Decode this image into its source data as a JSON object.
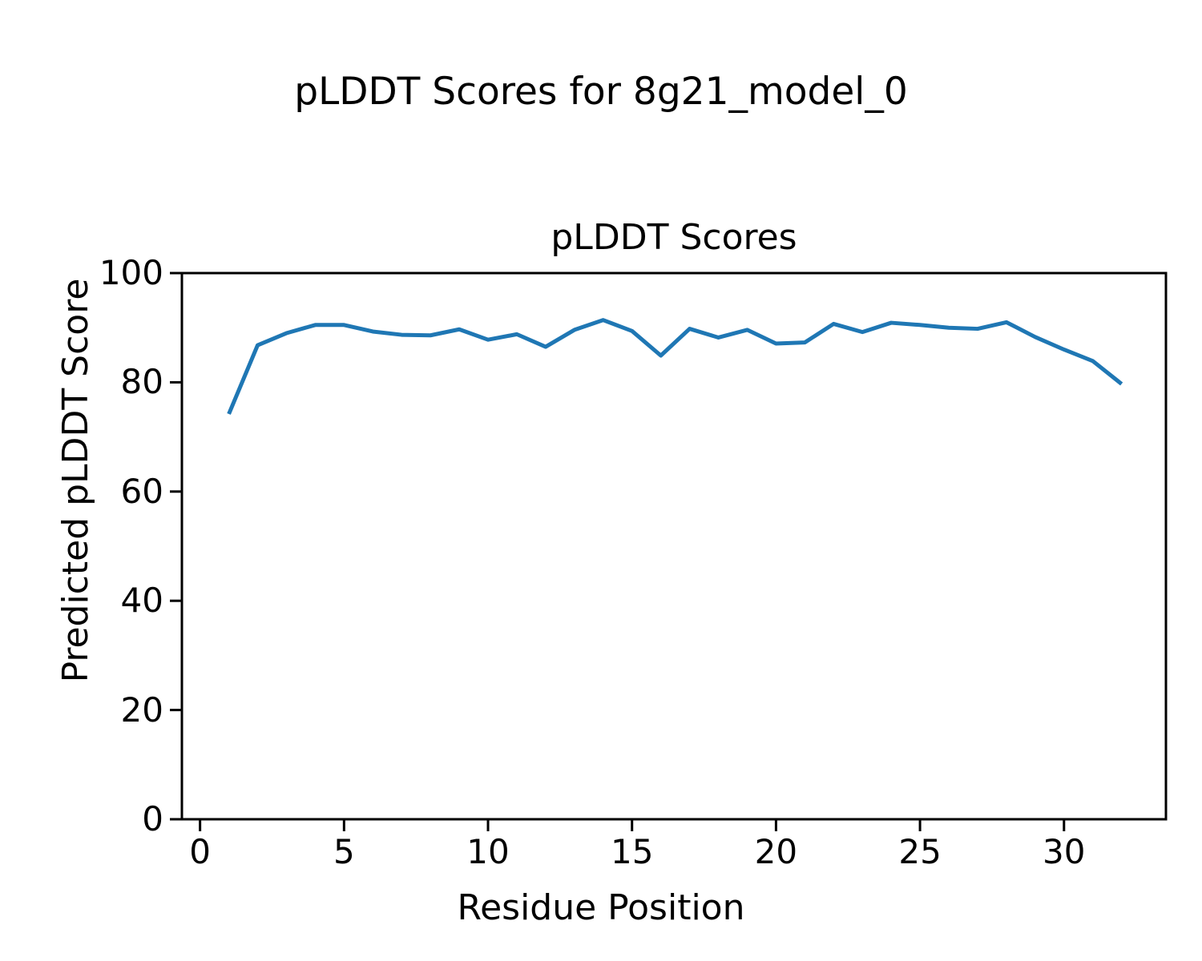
{
  "figure": {
    "suptitle": "pLDDT Scores for 8g21_model_0",
    "background_color": "#ffffff",
    "text_color": "#000000"
  },
  "chart_data": {
    "type": "line",
    "title": "pLDDT Scores",
    "xlabel": "Residue Position",
    "ylabel": "Predicted pLDDT Score",
    "x": [
      1,
      2,
      3,
      4,
      5,
      6,
      7,
      8,
      9,
      10,
      11,
      12,
      13,
      14,
      15,
      16,
      17,
      18,
      19,
      20,
      21,
      22,
      23,
      24,
      25,
      26,
      27,
      28,
      29,
      30,
      31,
      32
    ],
    "y": [
      74.2,
      86.8,
      89.0,
      90.5,
      90.5,
      89.3,
      88.7,
      88.6,
      89.7,
      87.8,
      88.8,
      86.5,
      89.6,
      91.4,
      89.4,
      84.9,
      89.8,
      88.2,
      89.6,
      87.1,
      87.3,
      90.7,
      89.2,
      90.9,
      90.5,
      90.0,
      89.8,
      91.0,
      88.3,
      86.0,
      83.9,
      79.7
    ],
    "xlim": [
      -0.63,
      33.54
    ],
    "ylim": [
      0,
      100
    ],
    "x_ticks": [
      0,
      5,
      10,
      15,
      20,
      25,
      30
    ],
    "y_ticks": [
      0,
      20,
      40,
      60,
      80,
      100
    ],
    "line_color": "#1f77b4",
    "line_width": 5,
    "spine_color": "#000000",
    "grid": false,
    "legend": "none"
  }
}
